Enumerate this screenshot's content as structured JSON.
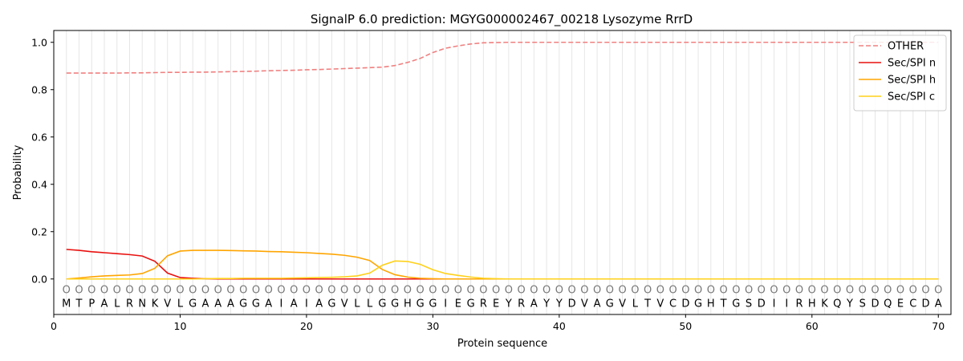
{
  "chart_data": {
    "type": "line",
    "title": "SignalP 6.0 prediction: MGYG000002467_00218 Lysozyme RrrD",
    "xlabel": "Protein sequence",
    "ylabel": "Probability",
    "xlim": [
      0,
      71
    ],
    "ylim": [
      -0.15,
      1.05
    ],
    "xticks": [
      0,
      10,
      20,
      30,
      40,
      50,
      60,
      70
    ],
    "yticks": [
      0.0,
      0.2,
      0.4,
      0.6,
      0.8,
      1.0
    ],
    "xtick_labels": [
      "0",
      "10",
      "20",
      "30",
      "40",
      "50",
      "60",
      "70"
    ],
    "ytick_labels": [
      "0.0",
      "0.2",
      "0.4",
      "0.6",
      "0.8",
      "1.0"
    ],
    "grid": "vertical lines at each residue",
    "legend_position": "top-right",
    "sequence": [
      "M",
      "T",
      "P",
      "A",
      "L",
      "R",
      "N",
      "K",
      "V",
      "L",
      "G",
      "A",
      "A",
      "A",
      "G",
      "G",
      "A",
      "I",
      "A",
      "I",
      "A",
      "G",
      "V",
      "L",
      "L",
      "G",
      "G",
      "H",
      "G",
      "G",
      "I",
      "E",
      "G",
      "R",
      "E",
      "Y",
      "R",
      "A",
      "Y",
      "Y",
      "D",
      "V",
      "A",
      "G",
      "V",
      "L",
      "T",
      "V",
      "C",
      "D",
      "G",
      "H",
      "T",
      "G",
      "S",
      "D",
      "I",
      "I",
      "R",
      "H",
      "K",
      "Q",
      "Y",
      "S",
      "D",
      "Q",
      "E",
      "C",
      "D",
      "A"
    ],
    "region_marker": "O",
    "x": [
      1,
      2,
      3,
      4,
      5,
      6,
      7,
      8,
      9,
      10,
      11,
      12,
      13,
      14,
      15,
      16,
      17,
      18,
      19,
      20,
      21,
      22,
      23,
      24,
      25,
      26,
      27,
      28,
      29,
      30,
      31,
      32,
      33,
      34,
      35,
      36,
      37,
      38,
      39,
      40,
      41,
      42,
      43,
      44,
      45,
      46,
      47,
      48,
      49,
      50,
      51,
      52,
      53,
      54,
      55,
      56,
      57,
      58,
      59,
      60,
      61,
      62,
      63,
      64,
      65,
      66,
      67,
      68,
      69,
      70
    ],
    "series": [
      {
        "name": "OTHER",
        "color": "#f08080",
        "style": "dashed",
        "values": [
          0.87,
          0.87,
          0.87,
          0.87,
          0.87,
          0.871,
          0.871,
          0.872,
          0.873,
          0.873,
          0.874,
          0.874,
          0.875,
          0.876,
          0.877,
          0.878,
          0.88,
          0.881,
          0.882,
          0.884,
          0.885,
          0.887,
          0.889,
          0.891,
          0.893,
          0.895,
          0.902,
          0.915,
          0.932,
          0.957,
          0.975,
          0.985,
          0.993,
          0.998,
          0.999,
          1.0,
          1.0,
          1.0,
          1.0,
          1.0,
          1.0,
          1.0,
          1.0,
          1.0,
          1.0,
          1.0,
          1.0,
          1.0,
          1.0,
          1.0,
          1.0,
          1.0,
          1.0,
          1.0,
          1.0,
          1.0,
          1.0,
          1.0,
          1.0,
          1.0,
          1.0,
          1.0,
          1.0,
          1.0,
          1.0,
          1.0,
          1.0,
          1.0,
          1.0,
          1.0
        ]
      },
      {
        "name": "Sec/SPI n",
        "color": "#e8110f",
        "style": "solid",
        "values": [
          0.125,
          0.121,
          0.115,
          0.111,
          0.107,
          0.103,
          0.097,
          0.075,
          0.025,
          0.006,
          0.003,
          0.001,
          0.0,
          0.0,
          0.0,
          0.0,
          0.0,
          0.0,
          0.0,
          0.0,
          0.0,
          0.0,
          0.0,
          0.0,
          0.0,
          0.0,
          0.0,
          0.0,
          0.0,
          0.0,
          0.0,
          0.0,
          0.0,
          0.0,
          0.0,
          0.0,
          0.0,
          0.0,
          0.0,
          0.0,
          0.0,
          0.0,
          0.0,
          0.0,
          0.0,
          0.0,
          0.0,
          0.0,
          0.0,
          0.0,
          0.0,
          0.0,
          0.0,
          0.0,
          0.0,
          0.0,
          0.0,
          0.0,
          0.0,
          0.0,
          0.0,
          0.0,
          0.0,
          0.0,
          0.0,
          0.0,
          0.0,
          0.0,
          0.0,
          0.0
        ]
      },
      {
        "name": "Sec/SPI h",
        "color": "#ffa500",
        "style": "solid",
        "values": [
          0.0,
          0.004,
          0.009,
          0.013,
          0.015,
          0.017,
          0.023,
          0.045,
          0.098,
          0.118,
          0.121,
          0.121,
          0.121,
          0.12,
          0.119,
          0.118,
          0.116,
          0.115,
          0.113,
          0.111,
          0.108,
          0.105,
          0.1,
          0.092,
          0.078,
          0.04,
          0.018,
          0.008,
          0.003,
          0.001,
          0.0,
          0.0,
          0.0,
          0.0,
          0.0,
          0.0,
          0.0,
          0.0,
          0.0,
          0.0,
          0.0,
          0.0,
          0.0,
          0.0,
          0.0,
          0.0,
          0.0,
          0.0,
          0.0,
          0.0,
          0.0,
          0.0,
          0.0,
          0.0,
          0.0,
          0.0,
          0.0,
          0.0,
          0.0,
          0.0,
          0.0,
          0.0,
          0.0,
          0.0,
          0.0,
          0.0,
          0.0,
          0.0,
          0.0,
          0.0
        ]
      },
      {
        "name": "Sec/SPI c",
        "color": "#ffd11a",
        "style": "solid",
        "values": [
          0.0,
          0.0,
          0.0,
          0.0,
          0.0,
          0.0,
          0.0,
          0.0,
          0.0,
          0.0,
          0.0,
          0.001,
          0.002,
          0.002,
          0.003,
          0.003,
          0.003,
          0.003,
          0.004,
          0.005,
          0.006,
          0.007,
          0.009,
          0.013,
          0.025,
          0.058,
          0.076,
          0.074,
          0.062,
          0.039,
          0.023,
          0.015,
          0.008,
          0.003,
          0.001,
          0.0,
          0.0,
          0.0,
          0.0,
          0.0,
          0.0,
          0.0,
          0.0,
          0.0,
          0.0,
          0.0,
          0.0,
          0.0,
          0.0,
          0.0,
          0.0,
          0.0,
          0.0,
          0.0,
          0.0,
          0.0,
          0.0,
          0.0,
          0.0,
          0.0,
          0.0,
          0.0,
          0.0,
          0.0,
          0.0,
          0.0,
          0.0,
          0.0,
          0.0,
          0.0
        ]
      }
    ]
  }
}
